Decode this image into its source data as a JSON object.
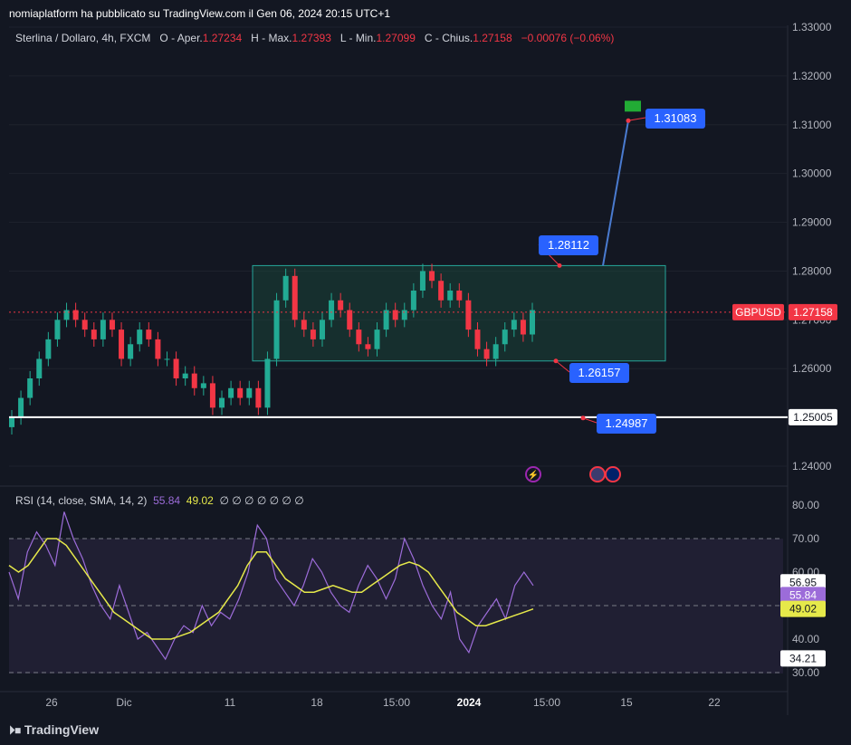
{
  "header": {
    "published": "nomiaplatform ha pubblicato su TradingView.com il Gen 06, 2024 20:15 UTC+1"
  },
  "legend": {
    "title": "Sterlina / Dollaro, 4h, FXCM",
    "open_label": "O - Aper.",
    "open": "1.27234",
    "high_label": "H - Max.",
    "high": "1.27393",
    "low_label": "L - Min.",
    "low": "1.27099",
    "close_label": "C - Chius.",
    "close": "1.27158",
    "change": "−0.00076 (−0.06%)"
  },
  "rsi_legend": {
    "title": "RSI (14, close, SMA, 14, 2)",
    "rsi": "55.84",
    "sma": "49.02",
    "extras": "∅ ∅ ∅ ∅ ∅ ∅ ∅"
  },
  "labels": {
    "target": "1.31083",
    "box_top": "1.28112",
    "box_bottom": "1.26157",
    "support": "1.24987",
    "support_axis": "1.25005",
    "symbol": "GBPUSD",
    "last_price": "1.27158",
    "rsi_axis_upper": "56.95",
    "rsi_axis_rsi": "55.84",
    "rsi_axis_sma": "49.02",
    "rsi_axis_lower": "34.21"
  },
  "footer": {
    "brand": "TradingView"
  },
  "colors": {
    "up": "#22ab94",
    "down": "#f23645",
    "box": "#26a69a",
    "label": "#2962ff",
    "rsi": "#9c6cd9",
    "rsi_sma": "#e6e94a"
  },
  "chart_data": [
    {
      "type": "candlestick",
      "title": "Sterlina / Dollaro, 4h, FXCM",
      "y_axis_ticks": [
        "1.24000",
        "1.25000",
        "1.26000",
        "1.27000",
        "1.28000",
        "1.29000",
        "1.30000",
        "1.31000",
        "1.32000",
        "1.33000"
      ],
      "ylim": [
        1.237,
        1.331
      ],
      "x_axis_ticks": [
        "26",
        "Dic",
        "11",
        "18",
        "15:00",
        "2024",
        "15:00",
        "15",
        "22"
      ],
      "approx_closes": [
        1.25,
        1.254,
        1.258,
        1.262,
        1.266,
        1.27,
        1.272,
        1.27,
        1.268,
        1.266,
        1.27,
        1.268,
        1.262,
        1.265,
        1.268,
        1.266,
        1.262,
        1.262,
        1.258,
        1.259,
        1.256,
        1.257,
        1.252,
        1.254,
        1.256,
        1.254,
        1.256,
        1.252,
        1.262,
        1.274,
        1.279,
        1.27,
        1.268,
        1.266,
        1.27,
        1.274,
        1.272,
        1.268,
        1.265,
        1.264,
        1.268,
        1.272,
        1.27,
        1.272,
        1.276,
        1.28,
        1.278,
        1.274,
        1.276,
        1.274,
        1.268,
        1.264,
        1.262,
        1.265,
        1.268,
        1.27,
        1.267,
        1.272
      ],
      "last_close": 1.27158,
      "annotations": [
        {
          "label": "1.28112",
          "value": 1.28112
        },
        {
          "label": "1.26157",
          "value": 1.26157
        },
        {
          "label": "1.24987",
          "value": 1.24987
        },
        {
          "label": "1.31083",
          "value": 1.31083
        }
      ],
      "horizontal_line": 1.25005,
      "range_box": {
        "top": 1.28112,
        "bottom": 1.26157
      }
    },
    {
      "type": "line",
      "title": "RSI (14, close, SMA, 14, 2)",
      "y_axis_ticks": [
        "30.00",
        "40.00",
        "50.00",
        "60.00",
        "70.00",
        "80.00"
      ],
      "ylim": [
        28,
        82
      ],
      "bands": [
        30,
        50,
        70
      ],
      "series": [
        {
          "name": "RSI",
          "values": [
            60,
            52,
            66,
            72,
            68,
            62,
            78,
            70,
            64,
            56,
            50,
            46,
            56,
            48,
            40,
            42,
            38,
            34,
            40,
            44,
            42,
            50,
            44,
            48,
            46,
            52,
            60,
            74,
            70,
            58,
            54,
            50,
            56,
            64,
            60,
            54,
            50,
            48,
            56,
            62,
            58,
            52,
            58,
            70,
            64,
            56,
            50,
            46,
            54,
            40,
            36,
            44,
            48,
            52,
            46,
            56,
            60,
            56
          ]
        },
        {
          "name": "SMA",
          "values": [
            62,
            60,
            62,
            66,
            70,
            70,
            68,
            64,
            60,
            56,
            52,
            48,
            46,
            44,
            42,
            40,
            40,
            40,
            41,
            42,
            44,
            46,
            48,
            52,
            56,
            62,
            66,
            66,
            62,
            58,
            56,
            54,
            54,
            55,
            56,
            55,
            54,
            54,
            56,
            58,
            60,
            62,
            63,
            62,
            60,
            56,
            52,
            48,
            46,
            44,
            44,
            45,
            46,
            47,
            48,
            49
          ]
        }
      ],
      "last_rsi": 55.84,
      "last_sma": 49.02
    }
  ]
}
